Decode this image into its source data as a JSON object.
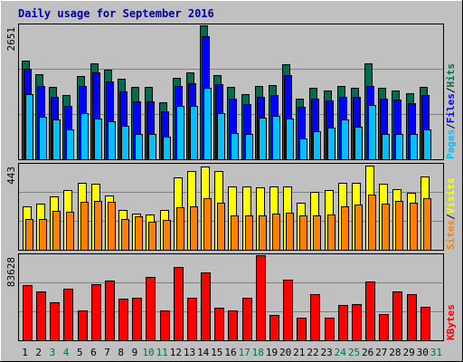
{
  "title": "Daily usage for September 2016",
  "colors": {
    "background": "#c0c0c0",
    "hits": "#006c54",
    "files": "#0000ff",
    "pages": "#00c0ff",
    "visits": "#ffff00",
    "sites": "#ff8000",
    "kbytes": "#ff0000",
    "weekday_label": "#000000",
    "weekend_label": "#007050"
  },
  "chart_data": [
    {
      "type": "bar",
      "name": "hits-files-pages",
      "ylabel_parts": [
        "Pages",
        "Files",
        "Hits"
      ],
      "ymax_label": "2651",
      "ylim": [
        0,
        2651
      ],
      "categories": [
        "1",
        "2",
        "3",
        "4",
        "5",
        "6",
        "7",
        "8",
        "9",
        "10",
        "11",
        "12",
        "13",
        "14",
        "15",
        "16",
        "17",
        "18",
        "19",
        "20",
        "21",
        "22",
        "23",
        "24",
        "25",
        "26",
        "27",
        "28",
        "29",
        "30",
        "31"
      ],
      "weekend": [
        3,
        4,
        10,
        11,
        17,
        18,
        24,
        25,
        31
      ],
      "series": [
        {
          "name": "Hits",
          "values": [
            1955,
            1682,
            1427,
            1263,
            1645,
            1905,
            1779,
            1599,
            1427,
            1427,
            1136,
            1610,
            1723,
            2651,
            1669,
            1427,
            1282,
            1445,
            1463,
            1887,
            1209,
            1409,
            1354,
            1445,
            1409,
            1905,
            1409,
            1354,
            1299,
            1427,
            null
          ]
        },
        {
          "name": "Files",
          "values": [
            1791,
            1445,
            1227,
            1063,
            1445,
            1717,
            1534,
            1336,
            1154,
            1154,
            954,
            1445,
            1500,
            2428,
            1492,
            1209,
            1100,
            1227,
            1263,
            1663,
            1045,
            1209,
            1172,
            1227,
            1227,
            1445,
            1209,
            1190,
            1118,
            1263,
            null
          ]
        },
        {
          "name": "Pages",
          "values": [
            1282,
            845,
            790,
            590,
            918,
            809,
            745,
            663,
            509,
            509,
            445,
            1063,
            1063,
            1409,
            918,
            518,
            500,
            827,
            863,
            809,
            418,
            563,
            627,
            790,
            645,
            1072,
            509,
            509,
            509,
            590,
            null
          ]
        }
      ]
    },
    {
      "type": "bar",
      "name": "visits-sites",
      "ylabel_parts": [
        "Sites",
        "Visits"
      ],
      "ymax_label": "443",
      "ylim": [
        0,
        443
      ],
      "categories": [
        "1",
        "2",
        "3",
        "4",
        "5",
        "6",
        "7",
        "8",
        "9",
        "10",
        "11",
        "12",
        "13",
        "14",
        "15",
        "16",
        "17",
        "18",
        "19",
        "20",
        "21",
        "22",
        "23",
        "24",
        "25",
        "26",
        "27",
        "28",
        "29",
        "30",
        "31"
      ],
      "series": [
        {
          "name": "Visits",
          "values": [
            227,
            240,
            277,
            310,
            350,
            345,
            281,
            208,
            189,
            182,
            207,
            375,
            411,
            434,
            409,
            331,
            330,
            327,
            330,
            330,
            244,
            303,
            313,
            349,
            350,
            437,
            344,
            317,
            297,
            382,
            null
          ]
        },
        {
          "name": "Sites",
          "values": [
            158,
            158,
            203,
            196,
            248,
            256,
            248,
            158,
            175,
            144,
            154,
            222,
            227,
            267,
            245,
            181,
            181,
            181,
            190,
            194,
            181,
            177,
            185,
            227,
            236,
            287,
            241,
            253,
            245,
            267,
            null
          ]
        }
      ]
    },
    {
      "type": "bar",
      "name": "kbytes",
      "ylabel_parts": [
        "KBytes"
      ],
      "ymax_label": "83628",
      "ylim": [
        0,
        83628
      ],
      "categories": [
        "1",
        "2",
        "3",
        "4",
        "5",
        "6",
        "7",
        "8",
        "9",
        "10",
        "11",
        "12",
        "13",
        "14",
        "15",
        "16",
        "17",
        "18",
        "19",
        "20",
        "21",
        "22",
        "23",
        "24",
        "25",
        "26",
        "27",
        "28",
        "29",
        "30",
        "31"
      ],
      "series": [
        {
          "name": "KBytes",
          "values": [
            54000,
            48000,
            37000,
            50500,
            29000,
            55000,
            59000,
            41000,
            42000,
            62000,
            29500,
            72000,
            41500,
            67000,
            32000,
            29500,
            42000,
            83628,
            25000,
            60000,
            22000,
            45000,
            22000,
            35000,
            36000,
            58000,
            25500,
            48000,
            45500,
            32500,
            null
          ]
        }
      ]
    }
  ]
}
